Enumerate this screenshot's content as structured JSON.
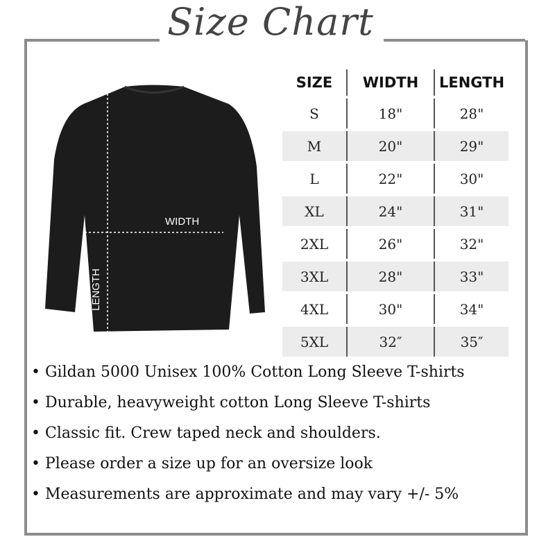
{
  "title": "Size Chart",
  "diagram": {
    "width_label": "WIDTH",
    "length_label": "LENGTH"
  },
  "table": {
    "headers": [
      "SIZE",
      "WIDTH",
      "LENGTH"
    ],
    "rows": [
      [
        "S",
        "18\"",
        "28\""
      ],
      [
        "M",
        "20\"",
        "29\""
      ],
      [
        "L",
        "22\"",
        "30\""
      ],
      [
        "XL",
        "24\"",
        "31\""
      ],
      [
        "2XL",
        "26\"",
        "32\""
      ],
      [
        "3XL",
        "28\"",
        "33\""
      ],
      [
        "4XL",
        "30\"",
        "34\""
      ],
      [
        "5XL",
        "32″",
        "35″"
      ]
    ]
  },
  "bullets": [
    "Gildan 5000 Unisex 100% Cotton Long Sleeve T-shirts",
    "Durable, heavyweight cotton Long Sleeve T-shirts",
    "Classic fit. Crew taped neck and shoulders.",
    "Please order a size up for an oversize look",
    "Measurements are approximate and may vary +/- 5%"
  ],
  "colors": {
    "frame": "#8c8c8c",
    "shirt": "#1c1c1c",
    "row_shade": "#ececec"
  }
}
